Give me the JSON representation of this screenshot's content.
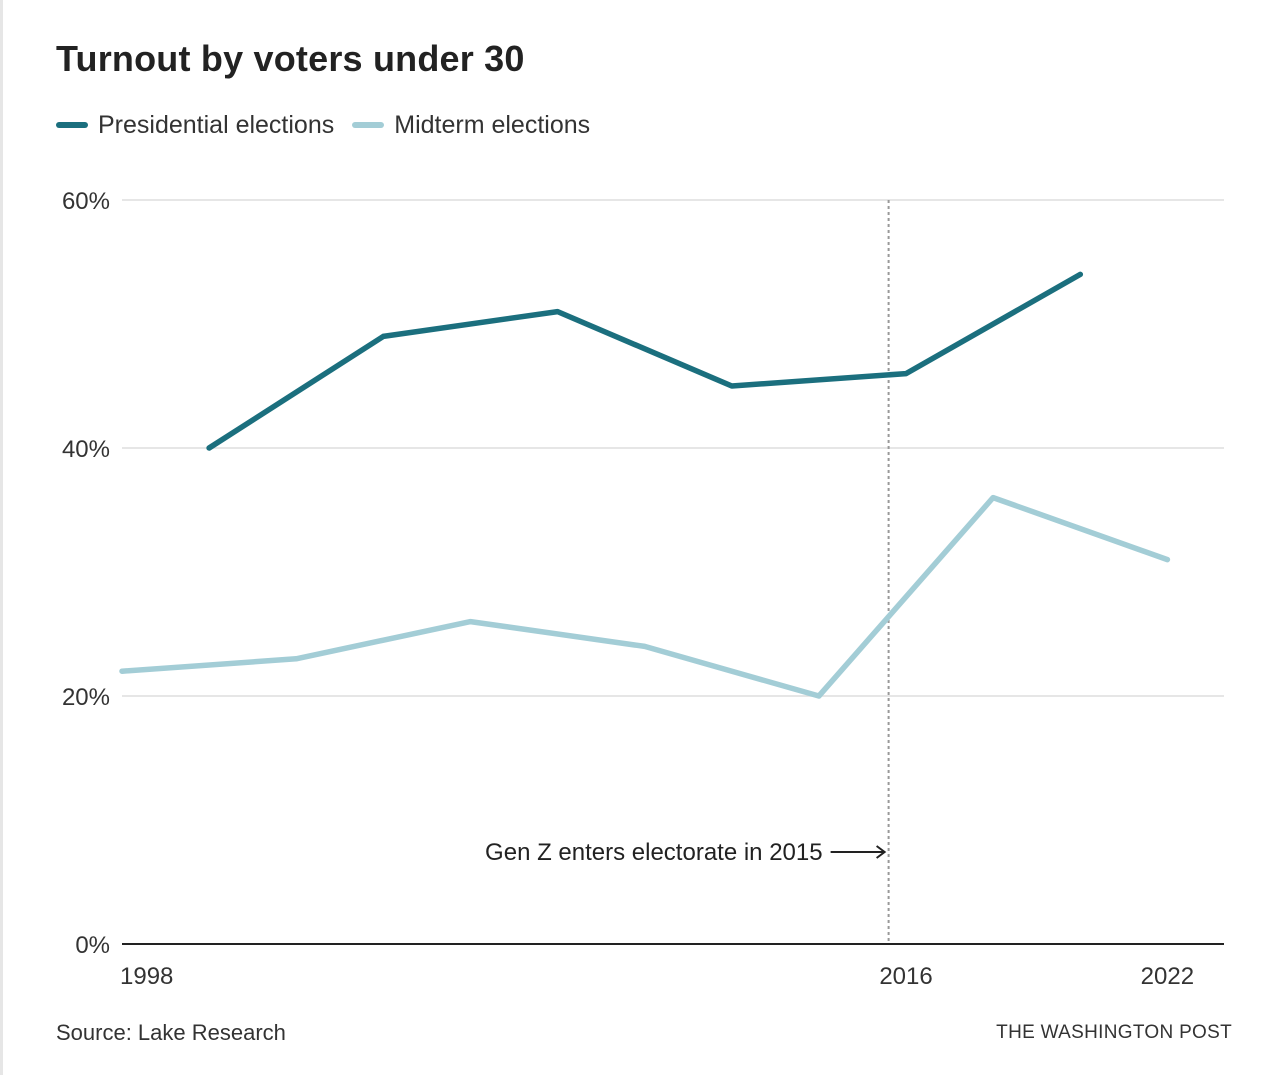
{
  "chart_data": {
    "type": "line",
    "title": "Turnout by voters under 30",
    "series": [
      {
        "name": "Presidential elections",
        "color": "#1b6f7e",
        "x": [
          2000,
          2004,
          2008,
          2012,
          2016,
          2020
        ],
        "values": [
          40,
          49,
          51,
          45,
          46,
          54
        ]
      },
      {
        "name": "Midterm elections",
        "color": "#a3cdd6",
        "x": [
          1998,
          2002,
          2006,
          2010,
          2014,
          2018,
          2022
        ],
        "values": [
          22,
          23,
          26,
          24,
          20,
          36,
          31
        ]
      }
    ],
    "xlim": [
      1998,
      2023.3
    ],
    "ylim": [
      0,
      60
    ],
    "x_ticks": [
      "1998",
      "2016",
      "2022"
    ],
    "y_ticks": [
      "0%",
      "20%",
      "40%",
      "60%"
    ],
    "grid": true,
    "annotation": {
      "text": "Gen Z enters electorate in 2015",
      "x": 2015.6
    },
    "legend": "top-left"
  },
  "footer": {
    "source": "Source: Lake Research",
    "brand": "THE WASHINGTON POST"
  }
}
